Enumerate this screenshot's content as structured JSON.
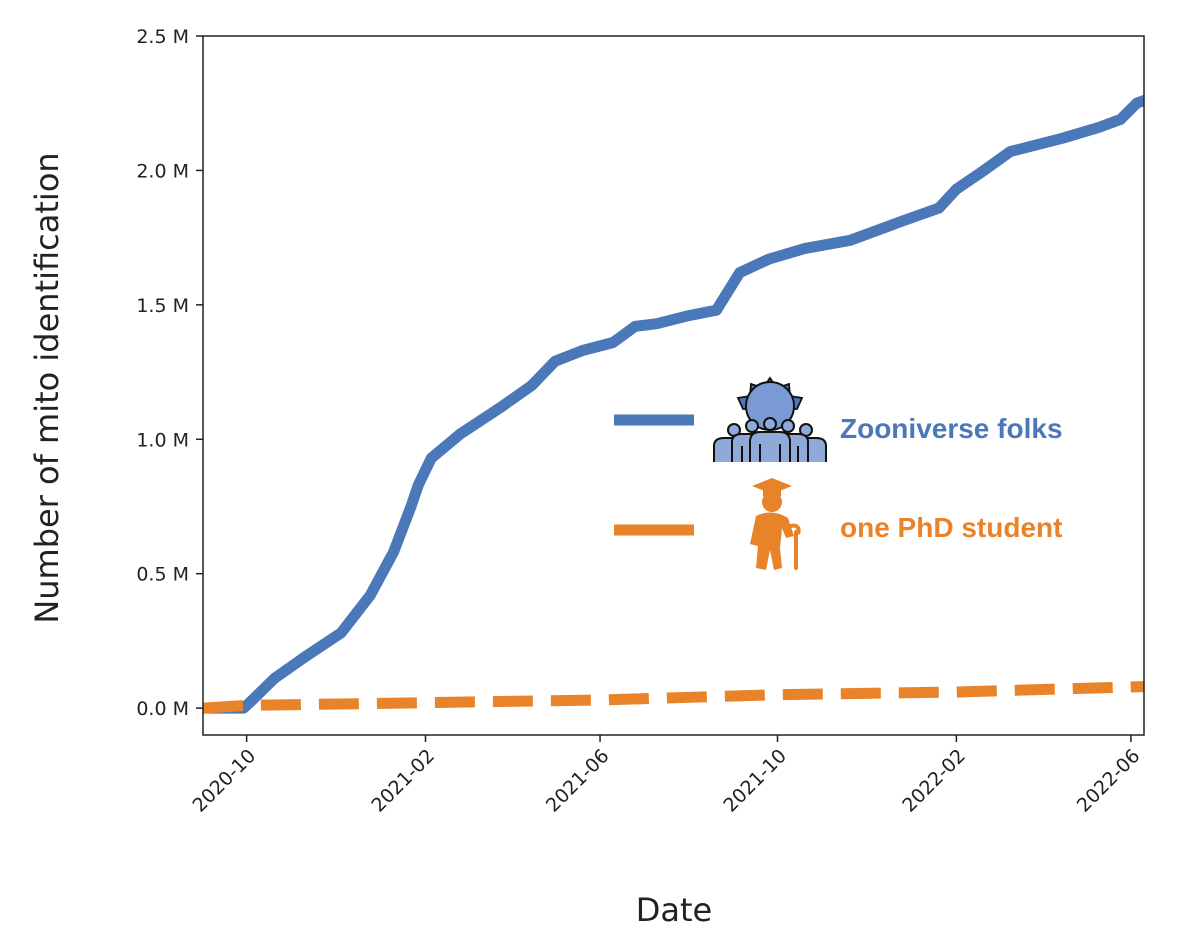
{
  "chart_data": {
    "type": "line",
    "title": "",
    "xlabel": "Date",
    "ylabel": "Number of mito identification",
    "x_tick_labels": [
      "2020-10",
      "2021-02",
      "2021-06",
      "2021-10",
      "2022-02",
      "2022-06"
    ],
    "y_tick_labels": [
      "0.0 M",
      "0.5 M",
      "1.0 M",
      "1.5 M",
      "2.0 M",
      "2.5 M"
    ],
    "y_ticks": [
      0,
      0.5,
      1.0,
      1.5,
      2.0,
      2.5
    ],
    "ylim": [
      -0.1,
      2.5
    ],
    "xlim": [
      "2020-09-01",
      "2022-06-10"
    ],
    "grid": false,
    "legend_position": "center-right",
    "series": [
      {
        "name": "Zooniverse folks",
        "color": "#4a78b9",
        "style": "solid",
        "icon": "crowd-icon",
        "points": [
          [
            "2020-09-01",
            0.0
          ],
          [
            "2020-09-29",
            0.0
          ],
          [
            "2020-10-05",
            0.03
          ],
          [
            "2020-10-20",
            0.11
          ],
          [
            "2020-11-10",
            0.19
          ],
          [
            "2020-12-05",
            0.28
          ],
          [
            "2020-12-25",
            0.42
          ],
          [
            "2021-01-10",
            0.58
          ],
          [
            "2021-01-22",
            0.75
          ],
          [
            "2021-01-27",
            0.83
          ],
          [
            "2021-02-05",
            0.93
          ],
          [
            "2021-02-25",
            1.02
          ],
          [
            "2021-03-25",
            1.12
          ],
          [
            "2021-04-15",
            1.2
          ],
          [
            "2021-05-01",
            1.29
          ],
          [
            "2021-05-20",
            1.33
          ],
          [
            "2021-06-10",
            1.36
          ],
          [
            "2021-06-25",
            1.42
          ],
          [
            "2021-07-10",
            1.43
          ],
          [
            "2021-08-01",
            1.46
          ],
          [
            "2021-08-20",
            1.48
          ],
          [
            "2021-09-05",
            1.62
          ],
          [
            "2021-09-25",
            1.67
          ],
          [
            "2021-10-20",
            1.71
          ],
          [
            "2021-11-20",
            1.74
          ],
          [
            "2021-12-25",
            1.81
          ],
          [
            "2022-01-20",
            1.86
          ],
          [
            "2022-02-01",
            1.93
          ],
          [
            "2022-02-20",
            2.0
          ],
          [
            "2022-03-10",
            2.07
          ],
          [
            "2022-04-15",
            2.12
          ],
          [
            "2022-05-10",
            2.16
          ],
          [
            "2022-05-25",
            2.19
          ],
          [
            "2022-06-05",
            2.25
          ],
          [
            "2022-06-10",
            2.26
          ]
        ]
      },
      {
        "name": "one PhD student",
        "color": "#e8832a",
        "style": "dashed",
        "icon": "graduate-elder-icon",
        "points": [
          [
            "2020-09-01",
            0.0
          ],
          [
            "2020-10-01",
            0.01
          ],
          [
            "2021-02-01",
            0.02
          ],
          [
            "2021-06-01",
            0.03
          ],
          [
            "2021-10-01",
            0.05
          ],
          [
            "2022-02-01",
            0.06
          ],
          [
            "2022-06-10",
            0.08
          ]
        ]
      }
    ]
  }
}
